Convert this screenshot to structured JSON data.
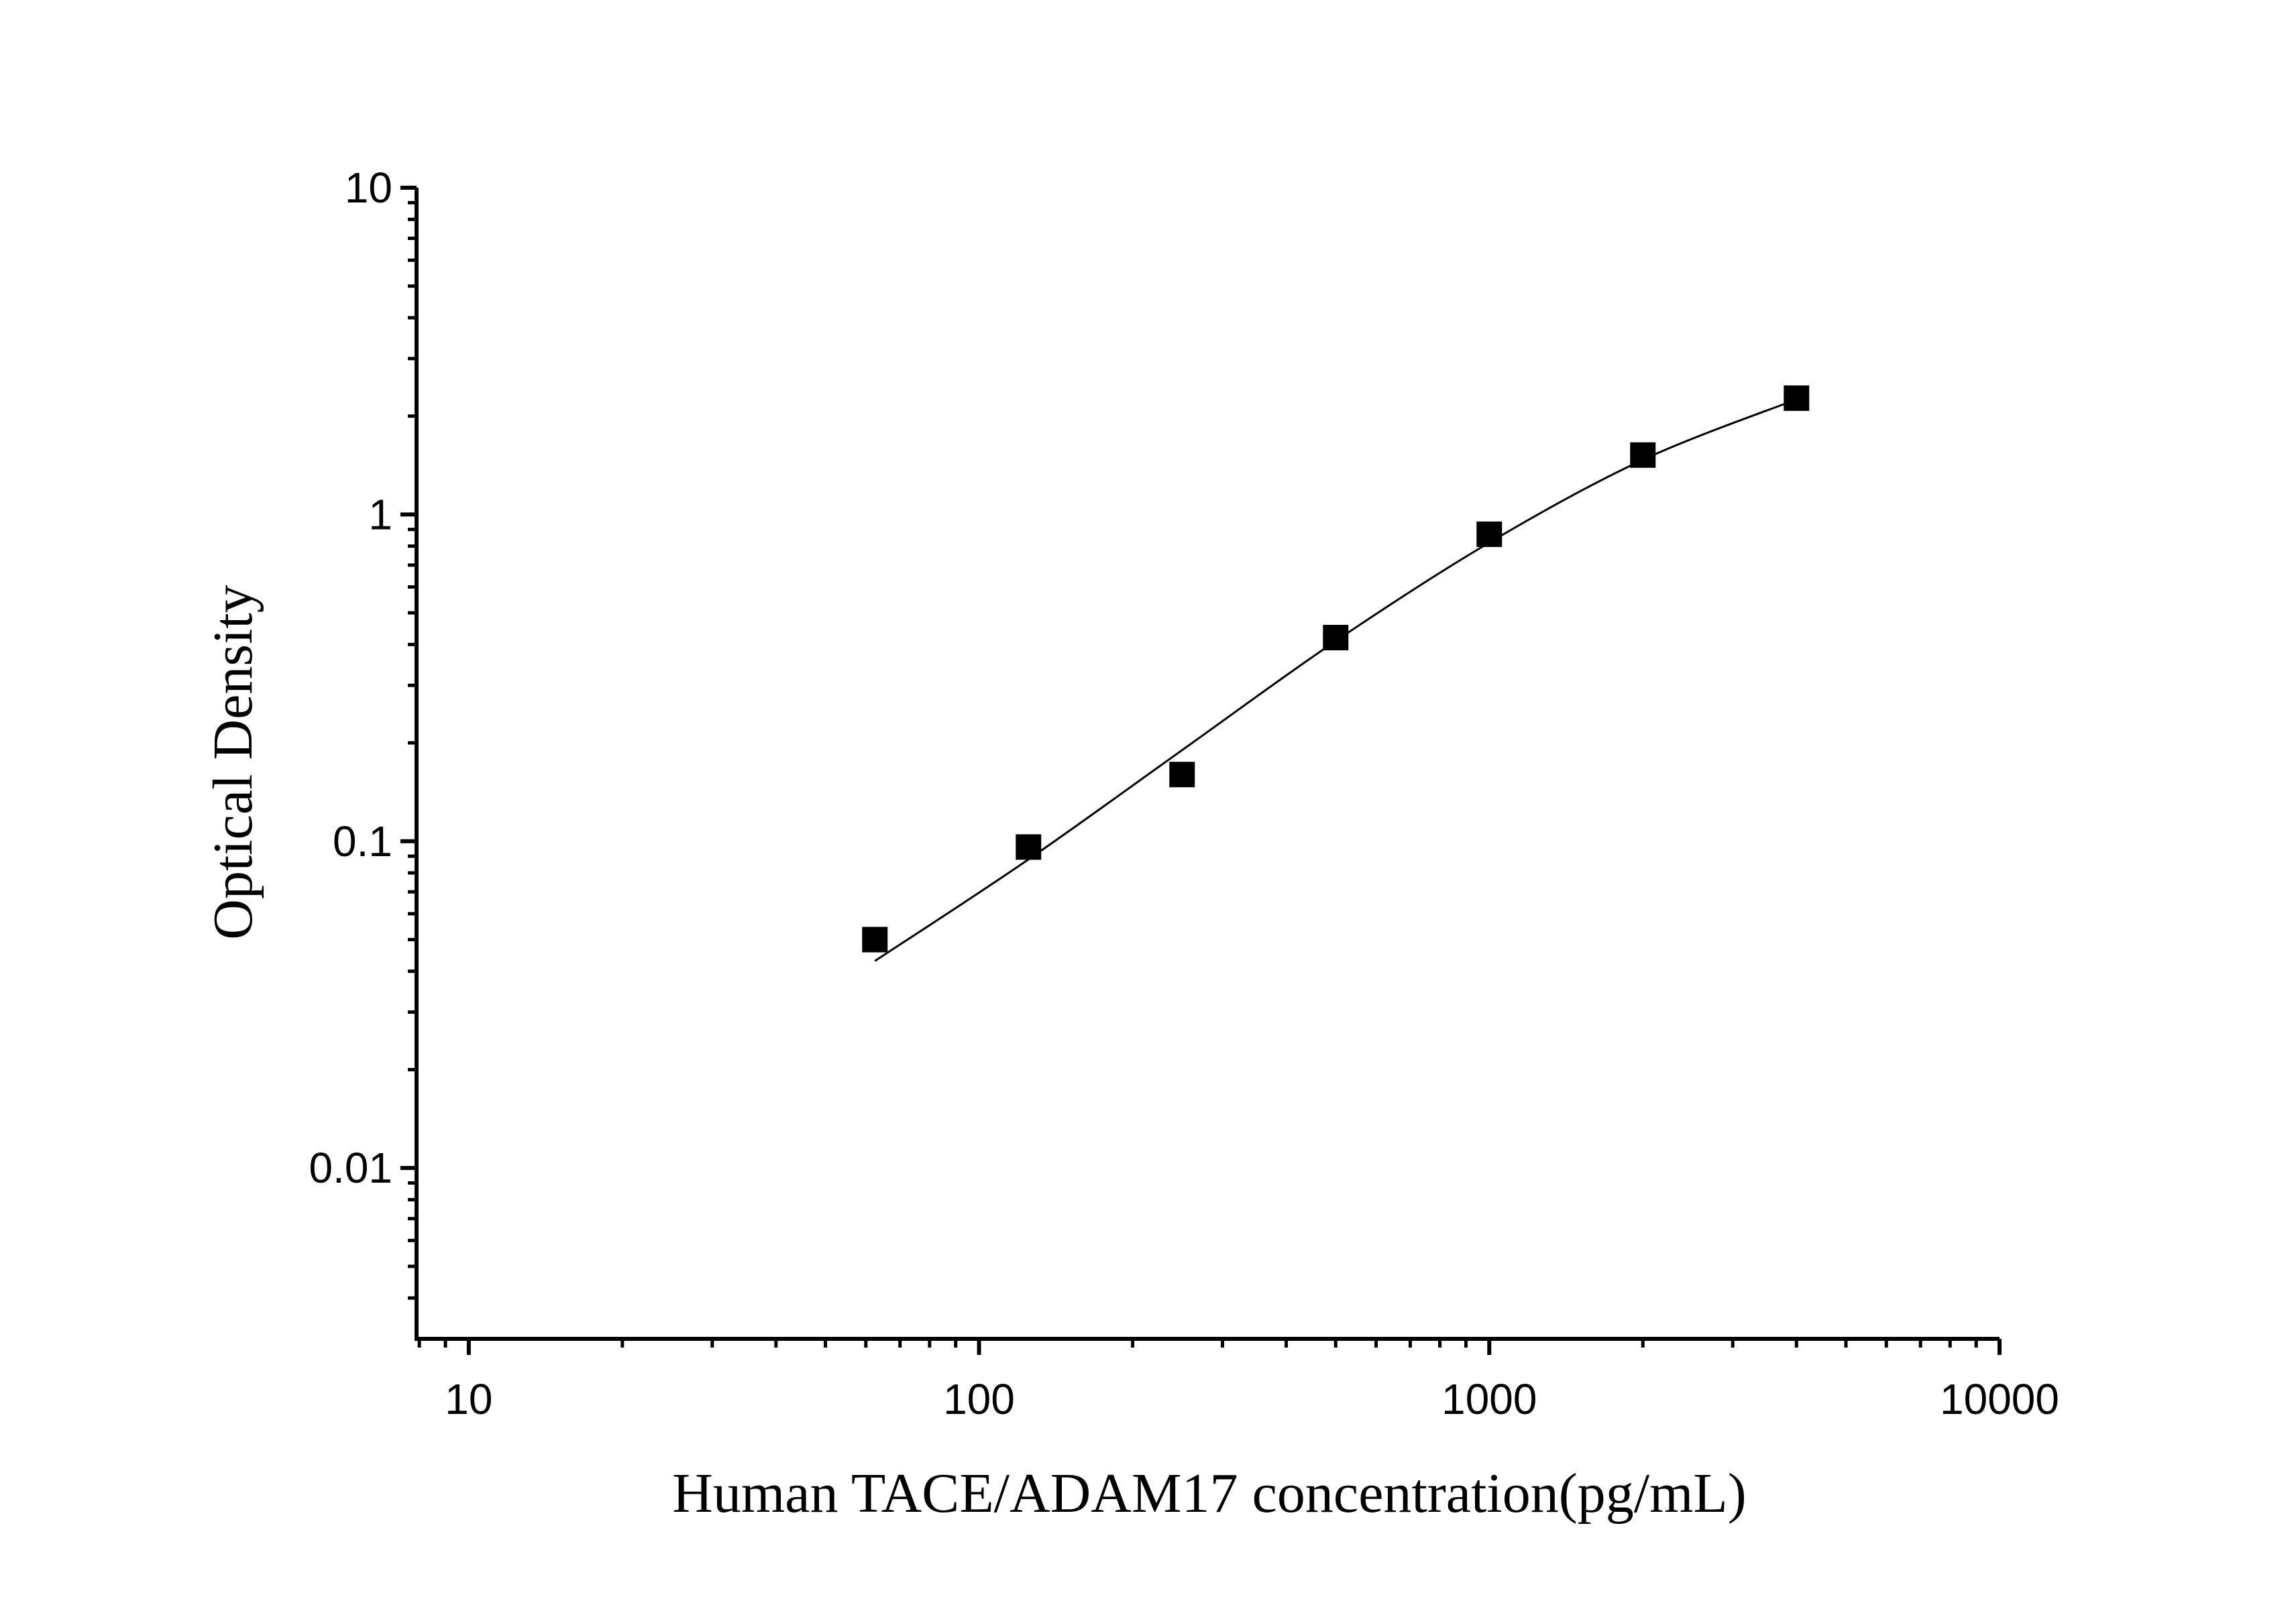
{
  "chart_data": {
    "type": "scatter",
    "x_label": "Human TACE/ADAM17 concentration(pg/mL)",
    "y_label": "Optical Density",
    "x_log": true,
    "y_log": true,
    "xlim": [
      7.9,
      10000
    ],
    "ylim": [
      0.003,
      10
    ],
    "xticks": [
      10,
      100,
      1000,
      10000
    ],
    "yticks": [
      0.01,
      0.1,
      1,
      10
    ],
    "xminorticks": [
      8,
      9,
      20,
      30,
      40,
      50,
      60,
      70,
      80,
      90,
      200,
      300,
      400,
      500,
      600,
      700,
      800,
      900,
      2000,
      3000,
      4000,
      5000,
      6000,
      7000,
      8000,
      9000
    ],
    "yminorticks": [
      0.004,
      0.005,
      0.006,
      0.007,
      0.008,
      0.009,
      0.02,
      0.03,
      0.04,
      0.05,
      0.06,
      0.07,
      0.08,
      0.09,
      0.2,
      0.3,
      0.4,
      0.5,
      0.6,
      0.7,
      0.8,
      0.9,
      2,
      3,
      4,
      5,
      6,
      7,
      8,
      9
    ],
    "series": [
      {
        "type": "scatter",
        "color": "#000000",
        "x": [
          62.5,
          125,
          250,
          500,
          1000,
          2000,
          4000
        ],
        "values": [
          0.05,
          0.096,
          0.16,
          0.42,
          0.87,
          1.52,
          2.27
        ]
      },
      {
        "type": "line",
        "color": "#000000",
        "x": [
          62.5,
          125,
          250,
          500,
          1000,
          2000,
          4000
        ],
        "values": [
          0.043,
          0.088,
          0.19,
          0.41,
          0.82,
          1.47,
          2.25
        ]
      }
    ]
  }
}
